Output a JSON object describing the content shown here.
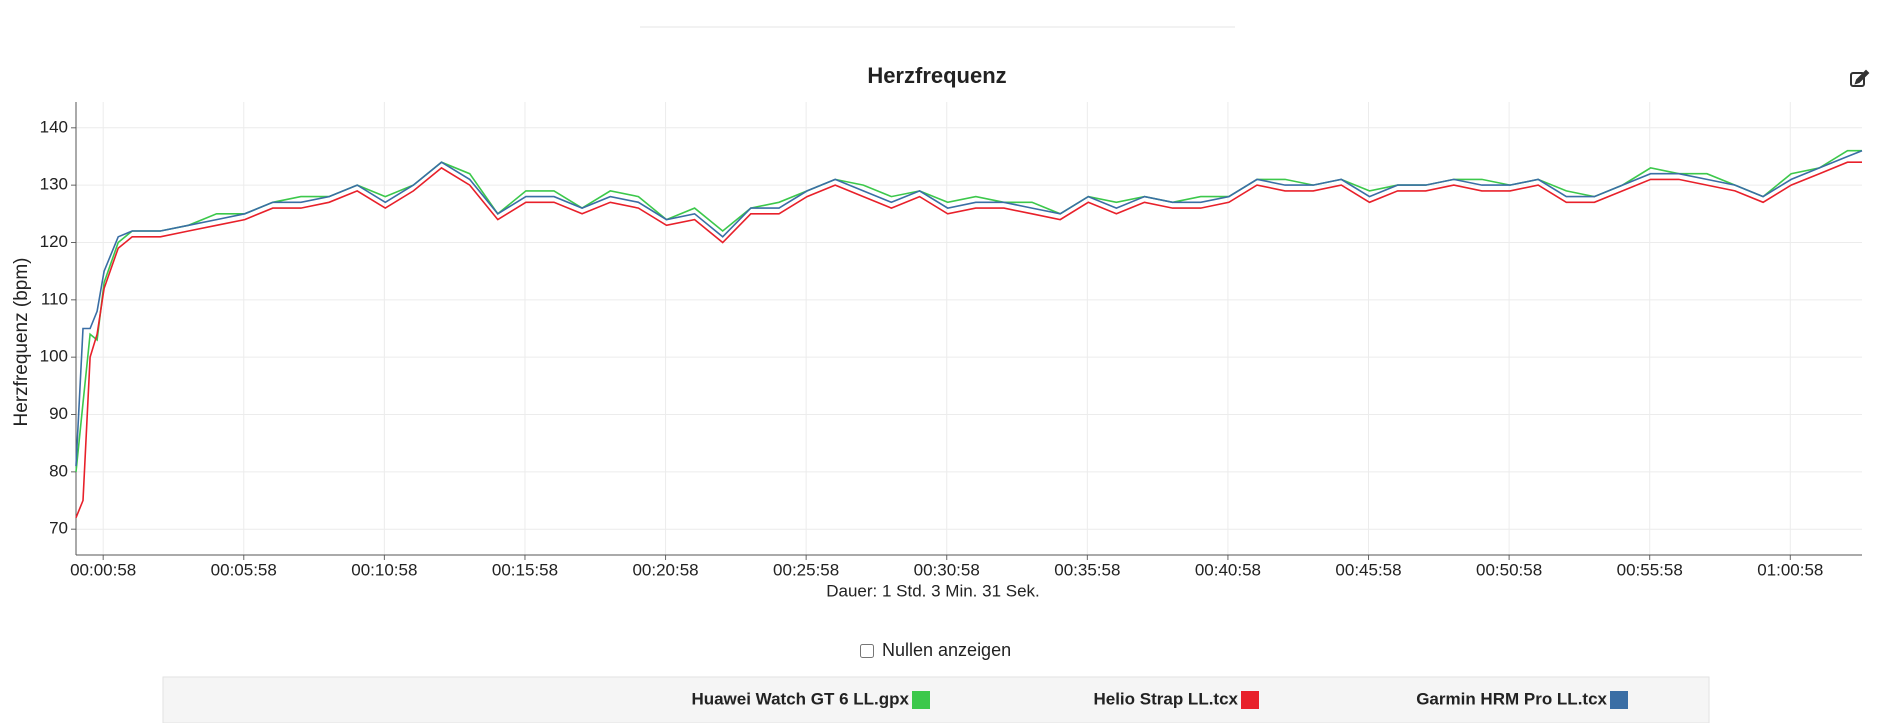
{
  "chart_data": {
    "type": "line",
    "title": "Herzfrequenz",
    "x_label": "Dauer: 1 Std. 3 Min. 31 Sek.",
    "y_label": "Herzfrequenz (bpm)",
    "x": [
      0,
      15,
      30,
      45,
      60,
      90,
      120,
      180,
      240,
      300,
      360,
      420,
      480,
      540,
      600,
      660,
      720,
      780,
      840,
      900,
      960,
      1020,
      1080,
      1140,
      1200,
      1260,
      1320,
      1380,
      1440,
      1500,
      1560,
      1620,
      1680,
      1740,
      1800,
      1860,
      1920,
      1980,
      2040,
      2100,
      2160,
      2220,
      2280,
      2340,
      2400,
      2460,
      2520,
      2580,
      2640,
      2700,
      2760,
      2820,
      2880,
      2940,
      3000,
      3060,
      3120,
      3180,
      3240,
      3300,
      3360,
      3420,
      3480,
      3540,
      3600,
      3660,
      3720,
      3780,
      3811
    ],
    "xlim": [
      0,
      3811
    ],
    "xticks": [
      {
        "value": 58,
        "label": "00:00:58"
      },
      {
        "value": 358,
        "label": "00:05:58"
      },
      {
        "value": 658,
        "label": "00:10:58"
      },
      {
        "value": 958,
        "label": "00:15:58"
      },
      {
        "value": 1258,
        "label": "00:20:58"
      },
      {
        "value": 1558,
        "label": "00:25:58"
      },
      {
        "value": 1858,
        "label": "00:30:58"
      },
      {
        "value": 2158,
        "label": "00:35:58"
      },
      {
        "value": 2458,
        "label": "00:40:58"
      },
      {
        "value": 2758,
        "label": "00:45:58"
      },
      {
        "value": 3058,
        "label": "00:50:58"
      },
      {
        "value": 3358,
        "label": "00:55:58"
      },
      {
        "value": 3658,
        "label": "01:00:58"
      }
    ],
    "ylim": [
      65.5,
      144.5
    ],
    "yticks": [
      70,
      80,
      90,
      100,
      110,
      120,
      130,
      140
    ],
    "grid": true,
    "series": [
      {
        "name": "Huawei Watch GT 6 LL.gpx",
        "color": "#3cc84b",
        "values": [
          80,
          92,
          104,
          103,
          113,
          120,
          122,
          122,
          123,
          125,
          125,
          127,
          128,
          128,
          130,
          128,
          130,
          134,
          132,
          125,
          129,
          129,
          126,
          129,
          128,
          124,
          126,
          122,
          126,
          127,
          129,
          131,
          130,
          128,
          129,
          127,
          128,
          127,
          127,
          125,
          128,
          127,
          128,
          127,
          128,
          128,
          131,
          131,
          130,
          131,
          129,
          130,
          130,
          131,
          131,
          130,
          131,
          129,
          128,
          130,
          133,
          132,
          132,
          130,
          128,
          132,
          133,
          136,
          136
        ]
      },
      {
        "name": "Helio Strap LL.tcx",
        "color": "#e8202a",
        "values": [
          72,
          75,
          100,
          104,
          112,
          119,
          121,
          121,
          122,
          123,
          124,
          126,
          126,
          127,
          129,
          126,
          129,
          133,
          130,
          124,
          127,
          127,
          125,
          127,
          126,
          123,
          124,
          120,
          125,
          125,
          128,
          130,
          128,
          126,
          128,
          125,
          126,
          126,
          125,
          124,
          127,
          125,
          127,
          126,
          126,
          127,
          130,
          129,
          129,
          130,
          127,
          129,
          129,
          130,
          129,
          129,
          130,
          127,
          127,
          129,
          131,
          131,
          130,
          129,
          127,
          130,
          132,
          134,
          134
        ]
      },
      {
        "name": "Garmin HRM Pro LL.tcx",
        "color": "#3a6ea5",
        "values": [
          81,
          105,
          105,
          108,
          115,
          121,
          122,
          122,
          123,
          124,
          125,
          127,
          127,
          128,
          130,
          127,
          130,
          134,
          131,
          125,
          128,
          128,
          126,
          128,
          127,
          124,
          125,
          121,
          126,
          126,
          129,
          131,
          129,
          127,
          129,
          126,
          127,
          127,
          126,
          125,
          128,
          126,
          128,
          127,
          127,
          128,
          131,
          130,
          130,
          131,
          128,
          130,
          130,
          131,
          130,
          130,
          131,
          128,
          128,
          130,
          132,
          132,
          131,
          130,
          128,
          131,
          133,
          135,
          136
        ]
      }
    ]
  },
  "controls": {
    "checkbox_label": "Nullen anzeigen",
    "checkbox_checked": false
  }
}
